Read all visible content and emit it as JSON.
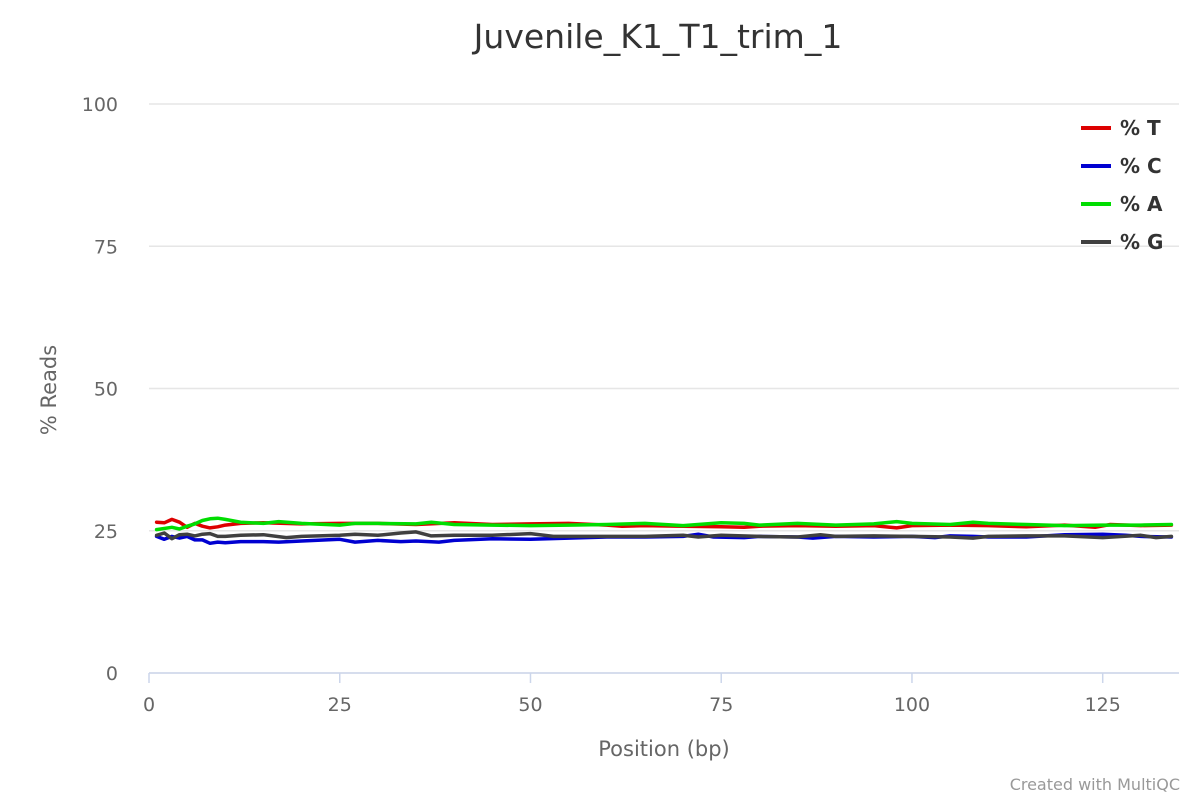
{
  "chart_data": {
    "type": "line",
    "title": "Juvenile_K1_T1_trim_1",
    "xlabel": "Position (bp)",
    "ylabel": "% Reads",
    "xlim": [
      0,
      135
    ],
    "ylim": [
      0,
      100
    ],
    "x_ticks": [
      "0",
      "25",
      "50",
      "75",
      "100",
      "125"
    ],
    "y_ticks": [
      "0",
      "25",
      "50",
      "75",
      "100"
    ],
    "legend_position": "top-right",
    "grid": true,
    "credit": "Created with MultiQC",
    "series": [
      {
        "name": "% T",
        "color": "#dd0000",
        "points": [
          [
            1,
            26.5
          ],
          [
            2,
            26.4
          ],
          [
            3,
            27.0
          ],
          [
            4,
            26.5
          ],
          [
            5,
            25.6
          ],
          [
            6,
            26.3
          ],
          [
            7,
            25.8
          ],
          [
            8,
            25.5
          ],
          [
            9,
            25.7
          ],
          [
            10,
            26.0
          ],
          [
            12,
            26.3
          ],
          [
            15,
            26.4
          ],
          [
            20,
            26.2
          ],
          [
            25,
            26.3
          ],
          [
            30,
            26.3
          ],
          [
            35,
            26.1
          ],
          [
            40,
            26.4
          ],
          [
            45,
            26.1
          ],
          [
            50,
            26.2
          ],
          [
            55,
            26.3
          ],
          [
            60,
            26.0
          ],
          [
            62,
            25.8
          ],
          [
            65,
            25.9
          ],
          [
            70,
            25.8
          ],
          [
            75,
            25.7
          ],
          [
            78,
            25.6
          ],
          [
            80,
            25.8
          ],
          [
            85,
            25.9
          ],
          [
            90,
            25.8
          ],
          [
            95,
            25.9
          ],
          [
            98,
            25.5
          ],
          [
            100,
            25.9
          ],
          [
            105,
            26.0
          ],
          [
            110,
            25.9
          ],
          [
            115,
            25.7
          ],
          [
            120,
            26.0
          ],
          [
            124,
            25.6
          ],
          [
            126,
            26.1
          ],
          [
            130,
            25.9
          ],
          [
            134,
            26.0
          ]
        ]
      },
      {
        "name": "% C",
        "color": "#0000d1",
        "points": [
          [
            1,
            24.0
          ],
          [
            2,
            23.5
          ],
          [
            3,
            24.0
          ],
          [
            4,
            23.7
          ],
          [
            5,
            24.0
          ],
          [
            6,
            23.4
          ],
          [
            7,
            23.4
          ],
          [
            8,
            22.8
          ],
          [
            9,
            23.0
          ],
          [
            10,
            22.9
          ],
          [
            12,
            23.1
          ],
          [
            15,
            23.1
          ],
          [
            17,
            23.0
          ],
          [
            20,
            23.2
          ],
          [
            25,
            23.5
          ],
          [
            27,
            23.0
          ],
          [
            30,
            23.3
          ],
          [
            33,
            23.1
          ],
          [
            35,
            23.2
          ],
          [
            38,
            23.0
          ],
          [
            40,
            23.3
          ],
          [
            45,
            23.6
          ],
          [
            50,
            23.5
          ],
          [
            55,
            23.7
          ],
          [
            60,
            23.9
          ],
          [
            65,
            23.9
          ],
          [
            70,
            24.0
          ],
          [
            72,
            24.4
          ],
          [
            74,
            23.9
          ],
          [
            78,
            23.8
          ],
          [
            80,
            24.0
          ],
          [
            85,
            23.9
          ],
          [
            87,
            23.7
          ],
          [
            90,
            24.0
          ],
          [
            95,
            23.9
          ],
          [
            100,
            24.0
          ],
          [
            103,
            23.8
          ],
          [
            105,
            24.1
          ],
          [
            108,
            24.0
          ],
          [
            110,
            23.9
          ],
          [
            115,
            23.9
          ],
          [
            120,
            24.3
          ],
          [
            125,
            24.4
          ],
          [
            128,
            24.2
          ],
          [
            130,
            24.0
          ],
          [
            134,
            23.9
          ]
        ]
      },
      {
        "name": "% A",
        "color": "#00dd00",
        "points": [
          [
            1,
            25.2
          ],
          [
            3,
            25.6
          ],
          [
            4,
            25.3
          ],
          [
            5,
            25.8
          ],
          [
            6,
            26.2
          ],
          [
            7,
            26.8
          ],
          [
            8,
            27.1
          ],
          [
            9,
            27.2
          ],
          [
            10,
            27.0
          ],
          [
            12,
            26.5
          ],
          [
            15,
            26.3
          ],
          [
            17,
            26.6
          ],
          [
            20,
            26.3
          ],
          [
            25,
            26.0
          ],
          [
            27,
            26.3
          ],
          [
            30,
            26.3
          ],
          [
            35,
            26.2
          ],
          [
            37,
            26.5
          ],
          [
            40,
            26.1
          ],
          [
            45,
            26.0
          ],
          [
            50,
            25.9
          ],
          [
            55,
            26.0
          ],
          [
            60,
            26.1
          ],
          [
            65,
            26.3
          ],
          [
            70,
            25.9
          ],
          [
            75,
            26.4
          ],
          [
            78,
            26.3
          ],
          [
            80,
            26.0
          ],
          [
            85,
            26.3
          ],
          [
            90,
            26.0
          ],
          [
            95,
            26.2
          ],
          [
            98,
            26.6
          ],
          [
            100,
            26.3
          ],
          [
            105,
            26.1
          ],
          [
            108,
            26.5
          ],
          [
            110,
            26.3
          ],
          [
            115,
            26.1
          ],
          [
            120,
            25.9
          ],
          [
            125,
            26.0
          ],
          [
            130,
            26.0
          ],
          [
            134,
            26.1
          ]
        ]
      },
      {
        "name": "% G",
        "color": "#404040",
        "points": [
          [
            1,
            24.2
          ],
          [
            2,
            24.6
          ],
          [
            3,
            23.6
          ],
          [
            4,
            24.3
          ],
          [
            5,
            24.4
          ],
          [
            6,
            24.1
          ],
          [
            7,
            24.4
          ],
          [
            8,
            24.5
          ],
          [
            9,
            24.0
          ],
          [
            10,
            24.0
          ],
          [
            12,
            24.2
          ],
          [
            15,
            24.3
          ],
          [
            18,
            23.8
          ],
          [
            20,
            24.0
          ],
          [
            25,
            24.2
          ],
          [
            27,
            24.4
          ],
          [
            30,
            24.2
          ],
          [
            33,
            24.6
          ],
          [
            35,
            24.8
          ],
          [
            37,
            24.1
          ],
          [
            40,
            24.2
          ],
          [
            45,
            24.2
          ],
          [
            50,
            24.5
          ],
          [
            53,
            24.0
          ],
          [
            55,
            24.0
          ],
          [
            60,
            24.0
          ],
          [
            65,
            24.0
          ],
          [
            70,
            24.2
          ],
          [
            72,
            23.9
          ],
          [
            75,
            24.2
          ],
          [
            80,
            24.0
          ],
          [
            85,
            23.9
          ],
          [
            88,
            24.3
          ],
          [
            90,
            24.0
          ],
          [
            95,
            24.1
          ],
          [
            100,
            24.0
          ],
          [
            105,
            23.9
          ],
          [
            108,
            23.7
          ],
          [
            110,
            24.0
          ],
          [
            115,
            24.1
          ],
          [
            120,
            24.1
          ],
          [
            125,
            23.8
          ],
          [
            130,
            24.2
          ],
          [
            132,
            23.8
          ],
          [
            134,
            24.0
          ]
        ]
      }
    ]
  }
}
